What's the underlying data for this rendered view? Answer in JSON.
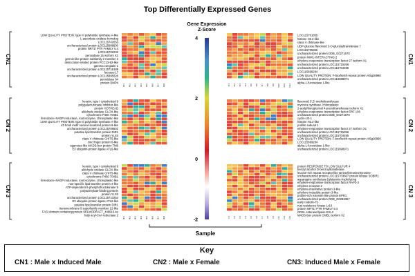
{
  "chart_data": {
    "type": "heatmap",
    "title": "Top Differentially Expressed Genes",
    "xlabel": "Sample",
    "colorbar": {
      "title_line1": "Gene Expression",
      "title_line2": "Z-Score",
      "ticks": [
        "4",
        "2",
        "0",
        "-2"
      ],
      "range": [
        -2,
        4
      ],
      "colors": [
        "#2a3a8f",
        "#d01a2a",
        "#ffffff",
        "#4a3fa0"
      ]
    },
    "panels": [
      {
        "label": "CN1",
        "left_samples": [
          "MI.1",
          "MI.2",
          "MI.3",
          "MI.4",
          "MI.5",
          "MI.6",
          "MI.7",
          "MI.8"
        ],
        "right_samples": [
          "M.1",
          "M.2",
          "M.3",
          "M.4",
          "M.5",
          "M.6",
          "M.7",
          "M.8",
          "M.9",
          "M.10",
          "M.11",
          "M.12"
        ],
        "left_genes": [
          "LOW QUALITY PROTEIN: type III polyketide synthase A-like",
          "L-ascorbate oxidase homolog",
          "LOC115742653",
          "uncharacterized protein LOC115688830",
          "protein NRT1/ PTR FAMILY 5.4",
          "LOC115702232",
          "peroxidase 15 isoform X2",
          "germin-like protein subfamily 2 member 4",
          "desiccation-related protein PCC13-62-like",
          "gamma conglutin 1",
          "uncharacterized protein LOC115716189",
          "laccase-17",
          "uncharacterized protein LOC115695026",
          "peroxidase 64",
          "protein DMP4"
        ],
        "right_genes": [
          "LOC115701855",
          "histone H3.2-like",
          "class V chitinase-like",
          "UDP-glucose flavonoid 3-O-glucosyltransferase 7",
          "LOC115705366",
          "uncharacterized protein DDB_G0271670",
          "protein NIM1-INTERACTING 2",
          "ethylene-responsive transcription factor 27 isoform X1",
          "uncharacterized protein LOC115715256",
          "uncharacterized protein LOC115704495",
          "LOC115699284",
          "LOW QUALITY PROTEIN: F-box/kelch-repeat protein At5g26960",
          "uncharacterized protein LOC115698971",
          "alpha-L-fucosidase 1-like"
        ]
      },
      {
        "label": "CN 2",
        "left_samples": [],
        "right_samples": [],
        "left_genes": [
          "keratin, type I cytoskeletal 9",
          "polygalacturonase inhibitor-like",
          "protein HOTHEAD",
          "aldehyde oxidase GLOX-like",
          "cytochrome P450 704B1",
          "ferredoxin--NADP reductase, root isozyme, chloroplastic-like",
          "LOW QUALITY PROTEIN: type III polyketide synthase A-like",
          "AT-hook motif nuclear-localized protein 6-like",
          "uncharacterized protein LOC115709501",
          "putative lipid-transfer protein DIR1",
          "protein YLS3",
          "class V chitinase CHIT5-like",
          "zinc finger protein 6-like",
          "agamous-like MADS-box protein TM6",
          "E3 ubiquitin-protein ligase ATL6-like"
        ],
        "right_genes": [
          "flavonoid 3',5'-methyltransferase",
          "myrcene synthase, chloroplastic",
          "2-acylphloroglucinol 4-prenyltransferase isoform X1",
          "ethylene-responsive transcription factor ERF 106",
          "uncharacterized protein DDB_G0271670",
          "cyclin-U2-1",
          "histone H3.2-like",
          "profilin subunit 1",
          "ethylene-responsive transcription factor 27 isoform X1",
          "uncharacterized protein LOC115715256",
          "uncharacterized protein LOC115704495",
          "LOW QUALITY PROTEIN: F-box/kelch-repeat protein At5g26960",
          "LOC115699284",
          "alpha-L-fucosidase 1-like",
          "uncharacterized protein LOC115698971"
        ]
      },
      {
        "label": "CN 3",
        "left_samples": [
          "MI.1",
          "MI.2",
          "MI.3",
          "MI.4",
          "MI.5",
          "MI.6",
          "MI.7",
          "MI.8"
        ],
        "right_samples": [
          "F.1",
          "F.2",
          "F.3",
          "F.4",
          "F.5",
          "F.6",
          "F.7",
          "F.8",
          "F.9",
          "F.10",
          "F.11",
          "F.12"
        ],
        "left_genes": [
          "keratin, type I cytoskeletal 9",
          "aldehyde oxidase GLOX-like",
          "class V chitinase CHIT5-like",
          "cytochrome P450 704B1",
          "ferredoxin--NADP reductase, root isozyme, chloroplastic-like",
          "non-specific lipid-transfer protein 4-like",
          "ATP-dependent 6-phosphofructokinase 5",
          "polyadenylate-binding protein",
          "protein YLS3",
          "uncharacterized protein LOC115710254",
          "E3 ubiquitin-protein ligase ATL6-like",
          "putative lipid-transfer protein DIR1",
          "transmembrane 9 superfamily member 12-like",
          "FASI domain containing protein SELMODRAFT_448915-ke",
          "fatty acyl-CoA reductase 2"
        ],
        "right_genes": [
          "protein RESPONSE TO LOW SULFUR 4",
          "benzyl alcohol O-benzoyltransferase",
          "leucine-rich repeat receptor-like serine/threonine/tyrosine-",
          "uncharacterized protein LOC115703667  protein kinase SOBIR1",
          "asparagine synthetase [glutamine-hydrolyzing",
          "ethylene-responsive transcription factor RAP2-3",
          "ethylene receptor 2",
          "ethylene-insensitive protein 3-like",
          "ethylene-inducible protein 3-like",
          "proline-rich extensin-like protein EPR1",
          "uncharacterized protein DDB_G0283357",
          "early nodulin-75",
          "rust resistance kinase Lr10",
          "protein NRT1/ PTR FAMILY 5.4",
          "GDSL esterase/lipase EXL3",
          "MADS-box protein CMB1 isoform X2"
        ]
      }
    ],
    "key": {
      "title": "Key",
      "items": [
        "CN1 : Male x Induced Male",
        "CN2 : Male x Female",
        "CN3: Induced Male x Female"
      ]
    }
  }
}
